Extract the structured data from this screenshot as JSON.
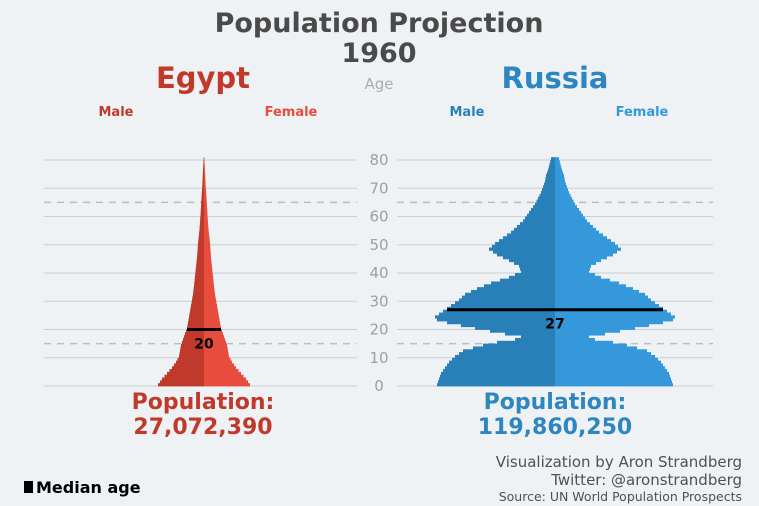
{
  "chart_data": {
    "type": "population-pyramid",
    "title": "Population Projection",
    "year": "1960",
    "age_label": "Age",
    "y_ticks": [
      0,
      10,
      20,
      30,
      40,
      50,
      60,
      70,
      80
    ],
    "dashed_reference_ages": [
      15,
      65
    ],
    "legend": "Median age",
    "credits": {
      "line1": "Visualization by Aron Strandberg",
      "line2": "Twitter: @aronstrandberg",
      "line3": "Source: UN World Population Prospects"
    },
    "population_label": "Population:",
    "countries": [
      {
        "name": "Egypt",
        "male_label": "Male",
        "female_label": "Female",
        "male_color": "#c0392b",
        "female_color": "#e74c3c",
        "text_color": "#c0392b",
        "population": "27,072,390",
        "median_age": 20,
        "age_profile": [
          [
            0,
            46
          ],
          [
            2,
            42
          ],
          [
            4,
            37
          ],
          [
            6,
            32
          ],
          [
            8,
            28
          ],
          [
            10,
            25
          ],
          [
            12,
            24
          ],
          [
            14,
            23
          ],
          [
            16,
            21
          ],
          [
            18,
            19
          ],
          [
            20,
            17
          ],
          [
            22,
            16
          ],
          [
            24,
            15
          ],
          [
            26,
            14
          ],
          [
            28,
            13
          ],
          [
            30,
            12
          ],
          [
            32,
            11
          ],
          [
            35,
            10
          ],
          [
            40,
            8.5
          ],
          [
            45,
            7
          ],
          [
            50,
            6
          ],
          [
            55,
            4.5
          ],
          [
            60,
            3.5
          ],
          [
            65,
            2.7
          ],
          [
            70,
            1.8
          ],
          [
            75,
            1.1
          ],
          [
            80,
            0.4
          ]
        ]
      },
      {
        "name": "Russia",
        "male_label": "Male",
        "female_label": "Female",
        "male_color": "#2980b9",
        "female_color": "#3498db",
        "text_color": "#2e86c1",
        "population": "119,860,250",
        "median_age": 27,
        "age_profile": [
          [
            0,
            118
          ],
          [
            2,
            116
          ],
          [
            4,
            114
          ],
          [
            6,
            110
          ],
          [
            8,
            106
          ],
          [
            10,
            100
          ],
          [
            12,
            92
          ],
          [
            14,
            72
          ],
          [
            15,
            58
          ],
          [
            16,
            40
          ],
          [
            17,
            34
          ],
          [
            18,
            50
          ],
          [
            20,
            80
          ],
          [
            22,
            108
          ],
          [
            23,
            118
          ],
          [
            24,
            120
          ],
          [
            26,
            112
          ],
          [
            28,
            104
          ],
          [
            30,
            96
          ],
          [
            32,
            90
          ],
          [
            34,
            78
          ],
          [
            36,
            64
          ],
          [
            38,
            46
          ],
          [
            40,
            34
          ],
          [
            42,
            36
          ],
          [
            44,
            46
          ],
          [
            46,
            58
          ],
          [
            48,
            66
          ],
          [
            50,
            60
          ],
          [
            52,
            52
          ],
          [
            54,
            44
          ],
          [
            56,
            38
          ],
          [
            58,
            32
          ],
          [
            60,
            28
          ],
          [
            62,
            24
          ],
          [
            64,
            20
          ],
          [
            66,
            17
          ],
          [
            68,
            14
          ],
          [
            70,
            12
          ],
          [
            72,
            10
          ],
          [
            74,
            9
          ],
          [
            76,
            7
          ],
          [
            78,
            5.5
          ],
          [
            80,
            4
          ]
        ]
      }
    ]
  }
}
